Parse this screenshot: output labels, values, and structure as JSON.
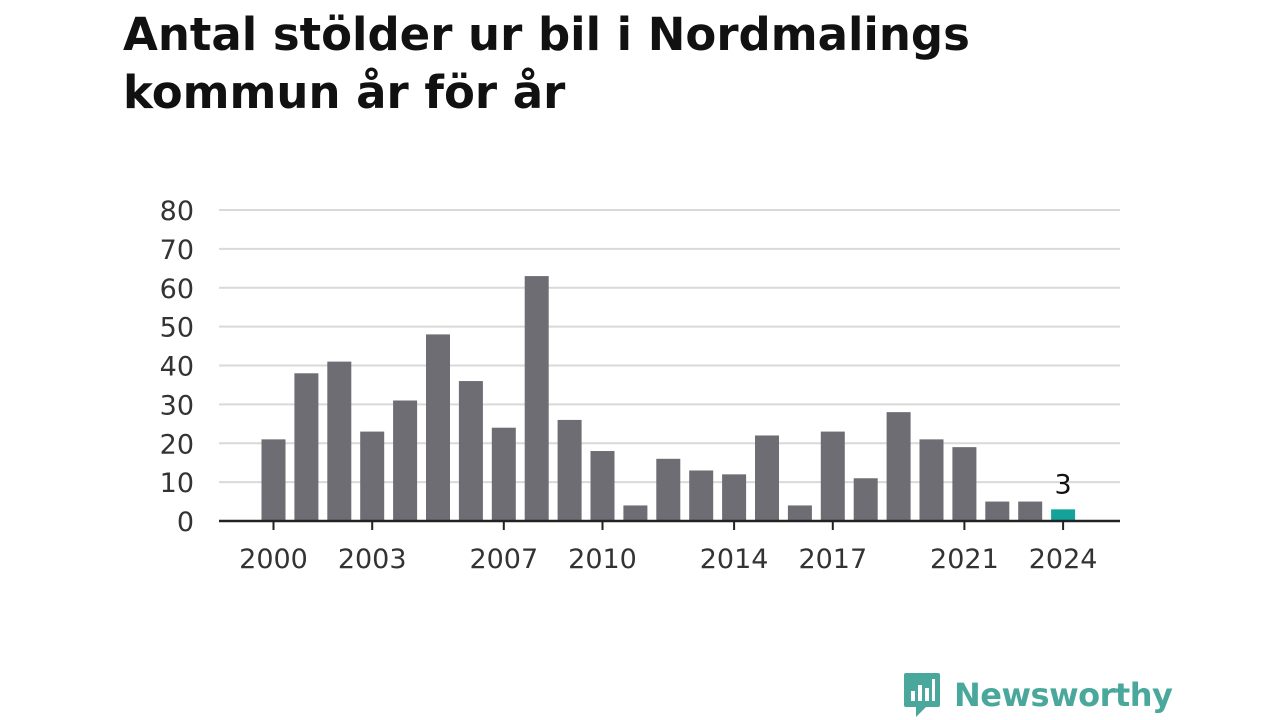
{
  "title": "Antal stölder ur bil i Nordmalings kommun år för år",
  "colors": {
    "bar": "#6e6d74",
    "highlight": "#13a39a",
    "grid": "#d9d9d9",
    "axis": "#222222",
    "brand": "#4aa79b"
  },
  "chart_data": {
    "type": "bar",
    "title": "Antal stölder ur bil i Nordmalings kommun år för år",
    "xlabel": "",
    "ylabel": "",
    "ylim": [
      0,
      80
    ],
    "yticks": [
      0,
      10,
      20,
      30,
      40,
      50,
      60,
      70,
      80
    ],
    "xtick_labels": [
      "2000",
      "2003",
      "2007",
      "2010",
      "2014",
      "2017",
      "2021",
      "2024"
    ],
    "grid": true,
    "categories": [
      "2000",
      "2001",
      "2002",
      "2003",
      "2004",
      "2005",
      "2006",
      "2007",
      "2008",
      "2009",
      "2010",
      "2011",
      "2012",
      "2013",
      "2014",
      "2015",
      "2016",
      "2017",
      "2018",
      "2019",
      "2020",
      "2021",
      "2022",
      "2023",
      "2024"
    ],
    "values": [
      21,
      38,
      41,
      23,
      31,
      48,
      36,
      24,
      63,
      26,
      18,
      4,
      16,
      13,
      12,
      22,
      4,
      23,
      11,
      28,
      21,
      19,
      5,
      5,
      3
    ],
    "highlight": {
      "category": "2024",
      "label": "3"
    }
  },
  "logo": {
    "text": "Newsworthy"
  }
}
